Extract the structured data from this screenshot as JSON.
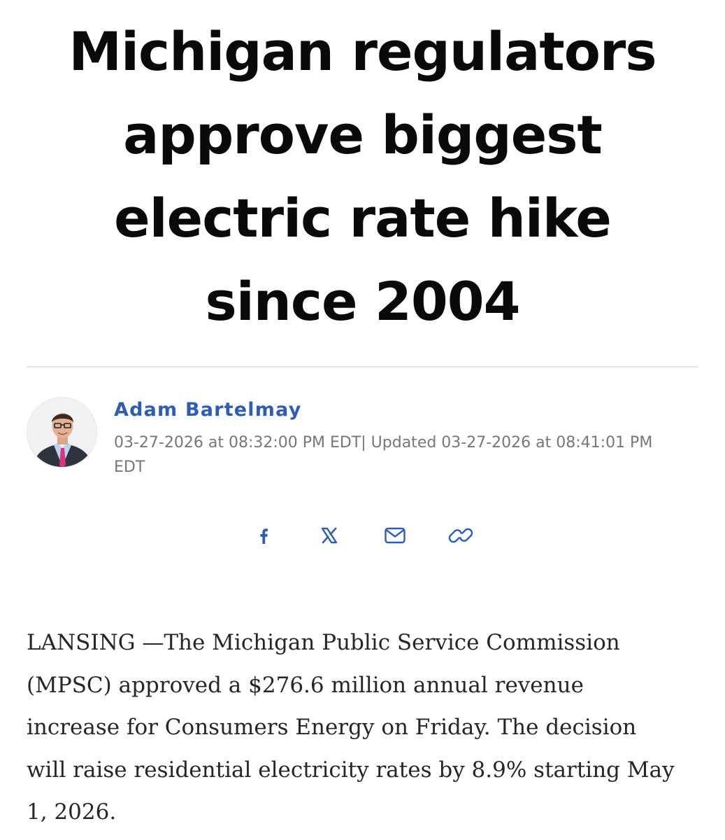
{
  "article": {
    "headline_lines": [
      "Michigan regulators",
      "approve biggest",
      "electric rate hike",
      "since 2004"
    ],
    "author": {
      "name": "Adam Bartelmay",
      "dateline_line1": "03-27-2026 at 08:32:00 PM EDT| Updated 03-27-2026 at 08:41:01 PM",
      "dateline_line2": "EDT"
    },
    "share": {
      "icons": [
        "facebook-icon",
        "x-icon",
        "email-icon",
        "link-icon"
      ],
      "color": "#2d5db8"
    },
    "body_lines": [
      "LANSING —The Michigan Public Service Commission",
      "(MPSC) approved a $276.6 million annual revenue",
      "increase for Consumers Energy on Friday. The decision",
      "will raise residential electricity rates by 8.9% starting May",
      "1, 2026."
    ]
  }
}
